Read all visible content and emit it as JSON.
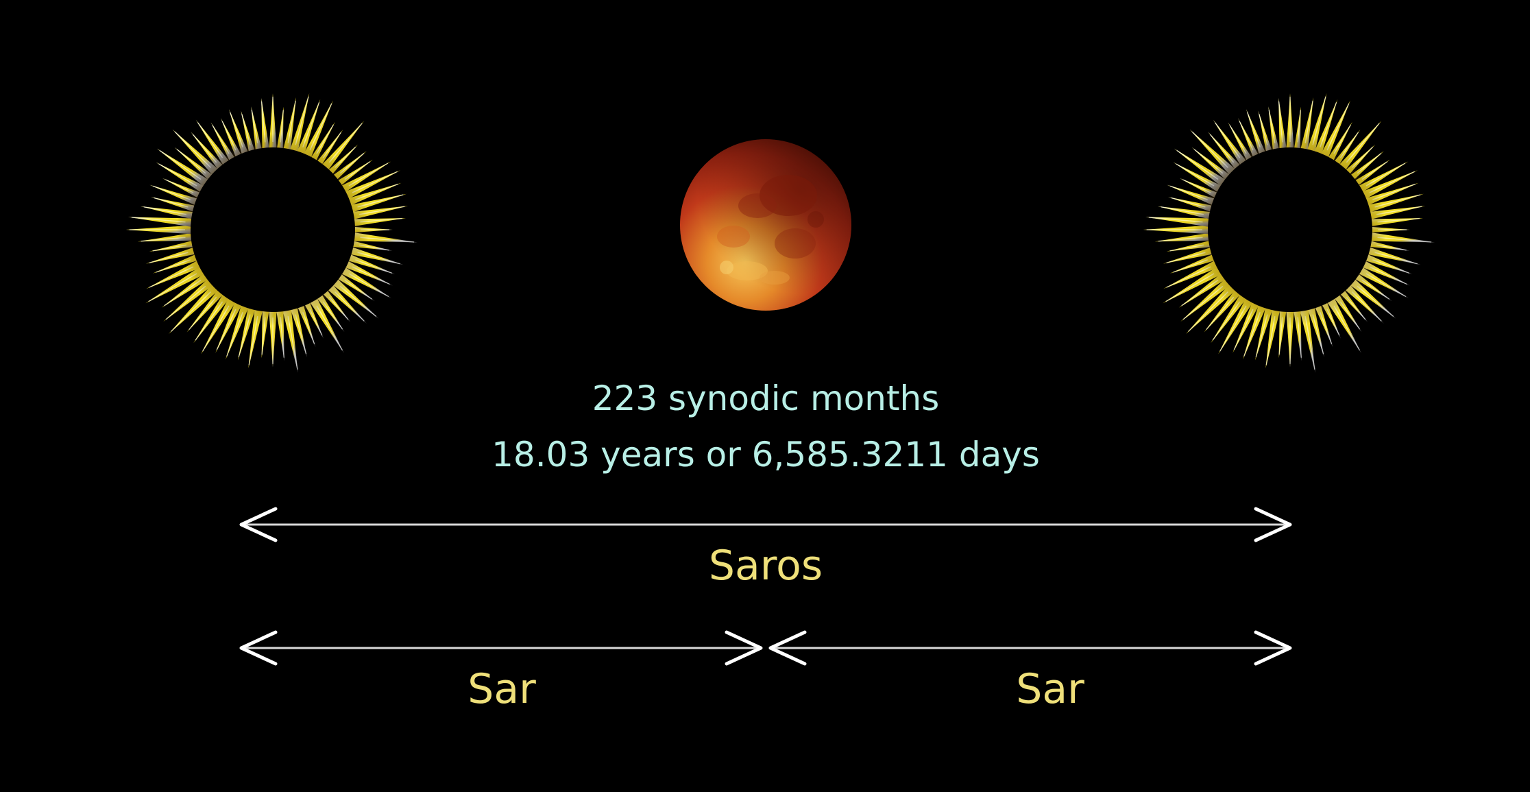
{
  "colors": {
    "background": "#000000",
    "info_text": "#b8efe6",
    "period_label": "#efe07a",
    "arrow": "#ffffff",
    "arrow_line": "#d9d9d9",
    "corona": "#f4e12a",
    "moon_red": "#c0391a",
    "moon_highlight": "#f0b34a"
  },
  "images": {
    "left": {
      "kind": "solar-eclipse",
      "icon": "solar-eclipse-icon"
    },
    "center": {
      "kind": "lunar-eclipse",
      "icon": "blood-moon-icon"
    },
    "right": {
      "kind": "solar-eclipse",
      "icon": "solar-eclipse-icon"
    }
  },
  "info": {
    "line1": "223 synodic months",
    "line2": "18.03 years or 6,585.3211 days"
  },
  "periods": {
    "saros": "Saros",
    "sar_left": "Sar",
    "sar_right": "Sar"
  }
}
